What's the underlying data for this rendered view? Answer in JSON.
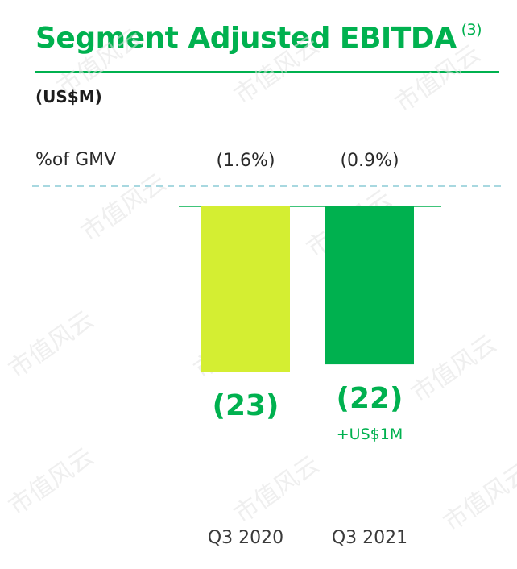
{
  "title": "Segment Adjusted EBITDA",
  "title_note": "(3)",
  "unit": "(US$M)",
  "gmv_label": "%of GMV",
  "watermark": "市值风云",
  "colors": {
    "brand": "#00b14f",
    "bar_q3_2020": "#d4ee32",
    "bar_q3_2021": "#00b14f",
    "dashed_line": "#a8d8e0"
  },
  "chart_data": {
    "type": "bar",
    "categories": [
      "Q3 2020",
      "Q3 2021"
    ],
    "values": [
      -23,
      -22
    ],
    "data_labels": [
      "(23)",
      "(22)"
    ],
    "pct_of_gmv": [
      "(1.6%)",
      "(0.9%)"
    ],
    "annotations": [
      "+US$1M"
    ],
    "ylim": [
      -23,
      0
    ],
    "grid": false,
    "legend": "none"
  }
}
